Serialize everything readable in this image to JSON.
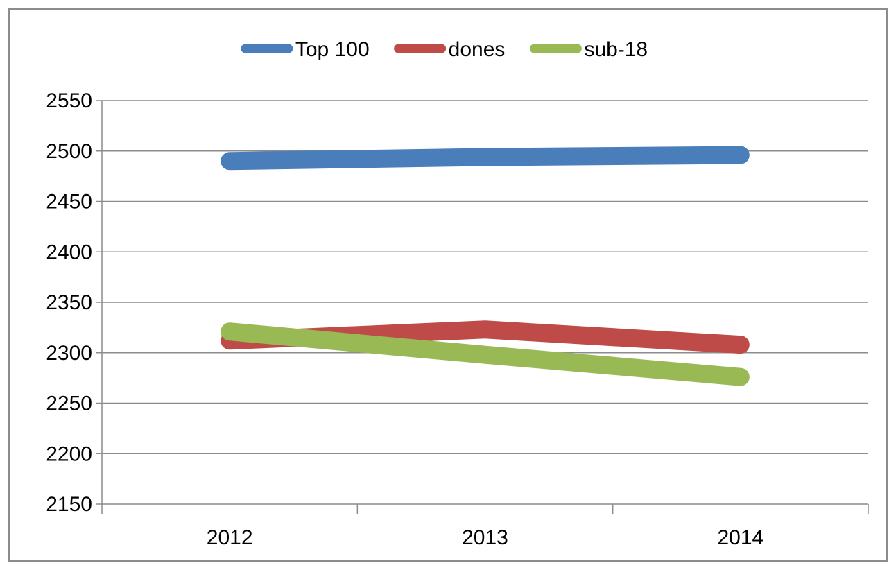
{
  "chart_data": {
    "type": "line",
    "title": "",
    "xlabel": "",
    "ylabel": "",
    "x": [
      "2012",
      "2013",
      "2014"
    ],
    "ylim": [
      2150,
      2550
    ],
    "y_ticks": [
      2550,
      2500,
      2450,
      2400,
      2350,
      2300,
      2250,
      2200,
      2150
    ],
    "grid": true,
    "legend_position": "top",
    "series": [
      {
        "name": "Top 100",
        "color": "#4a7ebb",
        "values": [
          2490,
          2494,
          2496
        ]
      },
      {
        "name": "dones",
        "color": "#be4b48",
        "values": [
          2312,
          2323,
          2308
        ]
      },
      {
        "name": "sub-18",
        "color": "#98b954",
        "values": [
          2321,
          2298,
          2276
        ]
      }
    ]
  }
}
